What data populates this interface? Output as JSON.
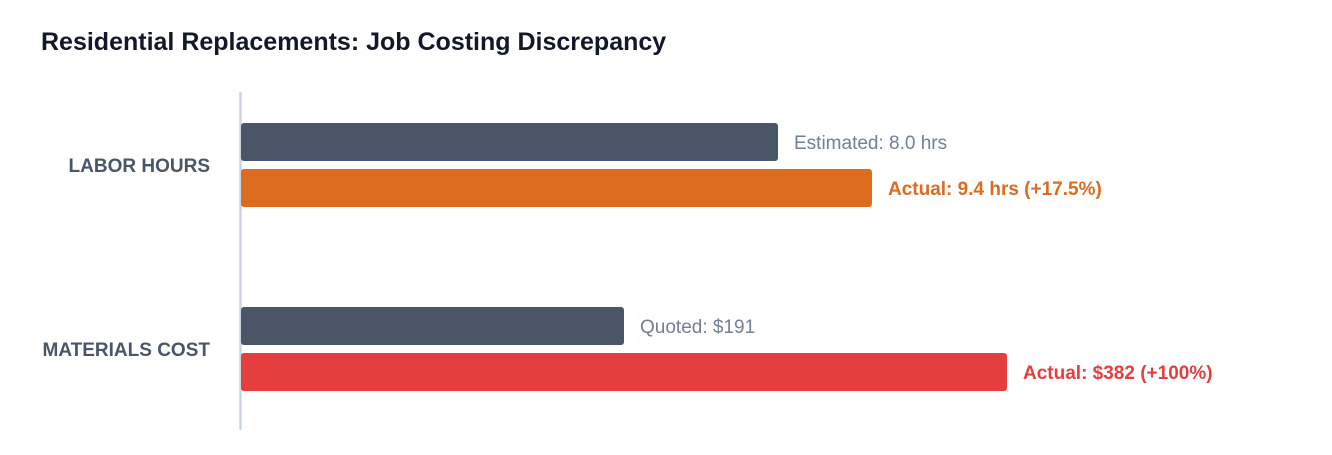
{
  "chart_data": {
    "type": "bar",
    "orientation": "horizontal",
    "title": "Residential Replacements: Job Costing Discrepancy",
    "xlabel": "",
    "ylabel": "",
    "grid": false,
    "groups": [
      {
        "category": "LABOR HOURS",
        "bars": [
          {
            "kind": "estimate",
            "value": 8.0,
            "relative": 1.0,
            "label": "Estimated: 8.0 hrs",
            "color": "#4a5568",
            "label_color": "#718096",
            "bold": false
          },
          {
            "kind": "actual",
            "value": 9.4,
            "relative": 1.175,
            "label": "Actual: 9.4 hrs (+17.5%)",
            "color": "#dd6b20",
            "label_color": "#dd6b20",
            "bold": true
          }
        ]
      },
      {
        "category": "MATERIALS COST",
        "bars": [
          {
            "kind": "estimate",
            "value": 191,
            "relative": 1.0,
            "label": "Quoted: $191",
            "color": "#4a5568",
            "label_color": "#718096",
            "bold": false
          },
          {
            "kind": "actual",
            "value": 382,
            "relative": 2.0,
            "label": "Actual: $382 (+100%)",
            "color": "#e53e3e",
            "label_color": "#e53e3e",
            "bold": true
          }
        ]
      }
    ],
    "colors": {
      "category_label": "#4a5568",
      "axis_line": "#cbd5e0",
      "title": "#111827"
    }
  }
}
